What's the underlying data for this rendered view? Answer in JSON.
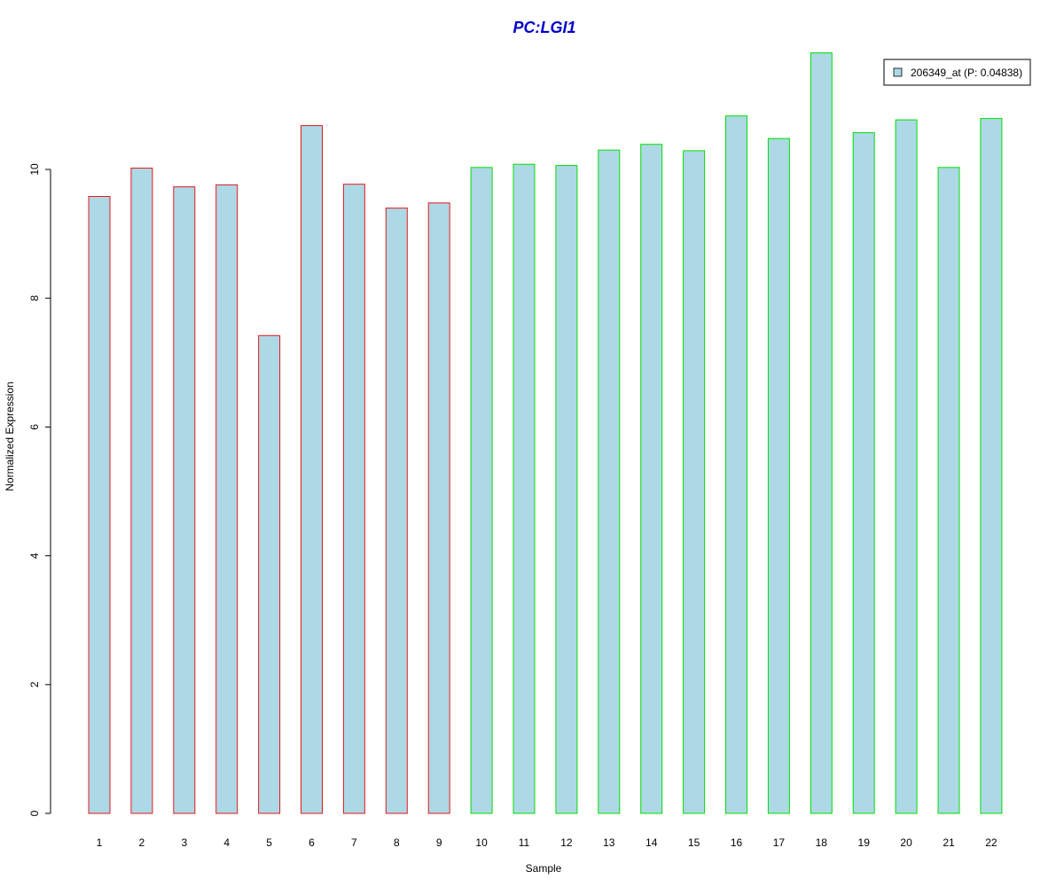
{
  "chart_data": {
    "type": "bar",
    "title": "PC:LGI1",
    "xlabel": "Sample",
    "ylabel": "Normalized Expression",
    "categories": [
      "1",
      "2",
      "3",
      "4",
      "5",
      "6",
      "7",
      "8",
      "9",
      "10",
      "11",
      "12",
      "13",
      "14",
      "15",
      "16",
      "17",
      "18",
      "19",
      "20",
      "21",
      "22"
    ],
    "series": [
      {
        "name": "206349_at (P: 0.04838)",
        "values": [
          9.58,
          10.02,
          9.73,
          9.76,
          7.42,
          10.68,
          9.77,
          9.4,
          9.48,
          10.03,
          10.08,
          10.06,
          10.3,
          10.39,
          10.29,
          10.83,
          10.48,
          11.81,
          10.57,
          10.77,
          10.03,
          10.79
        ]
      }
    ],
    "group_border_colors": [
      "#e41a1c",
      "#e41a1c",
      "#e41a1c",
      "#e41a1c",
      "#e41a1c",
      "#e41a1c",
      "#e41a1c",
      "#e41a1c",
      "#e41a1c",
      "#00e000",
      "#00e000",
      "#00e000",
      "#00e000",
      "#00e000",
      "#00e000",
      "#00e000",
      "#00e000",
      "#00e000",
      "#00e000",
      "#00e000",
      "#00e000",
      "#00e000"
    ],
    "ylim": [
      0,
      12
    ],
    "yticks": [
      0,
      2,
      4,
      6,
      8,
      10
    ],
    "grid": false,
    "legend_position": "top-right",
    "colors": {
      "bar_fill": "#add8e6",
      "title": "#0000cc",
      "axis": "#000000"
    }
  }
}
